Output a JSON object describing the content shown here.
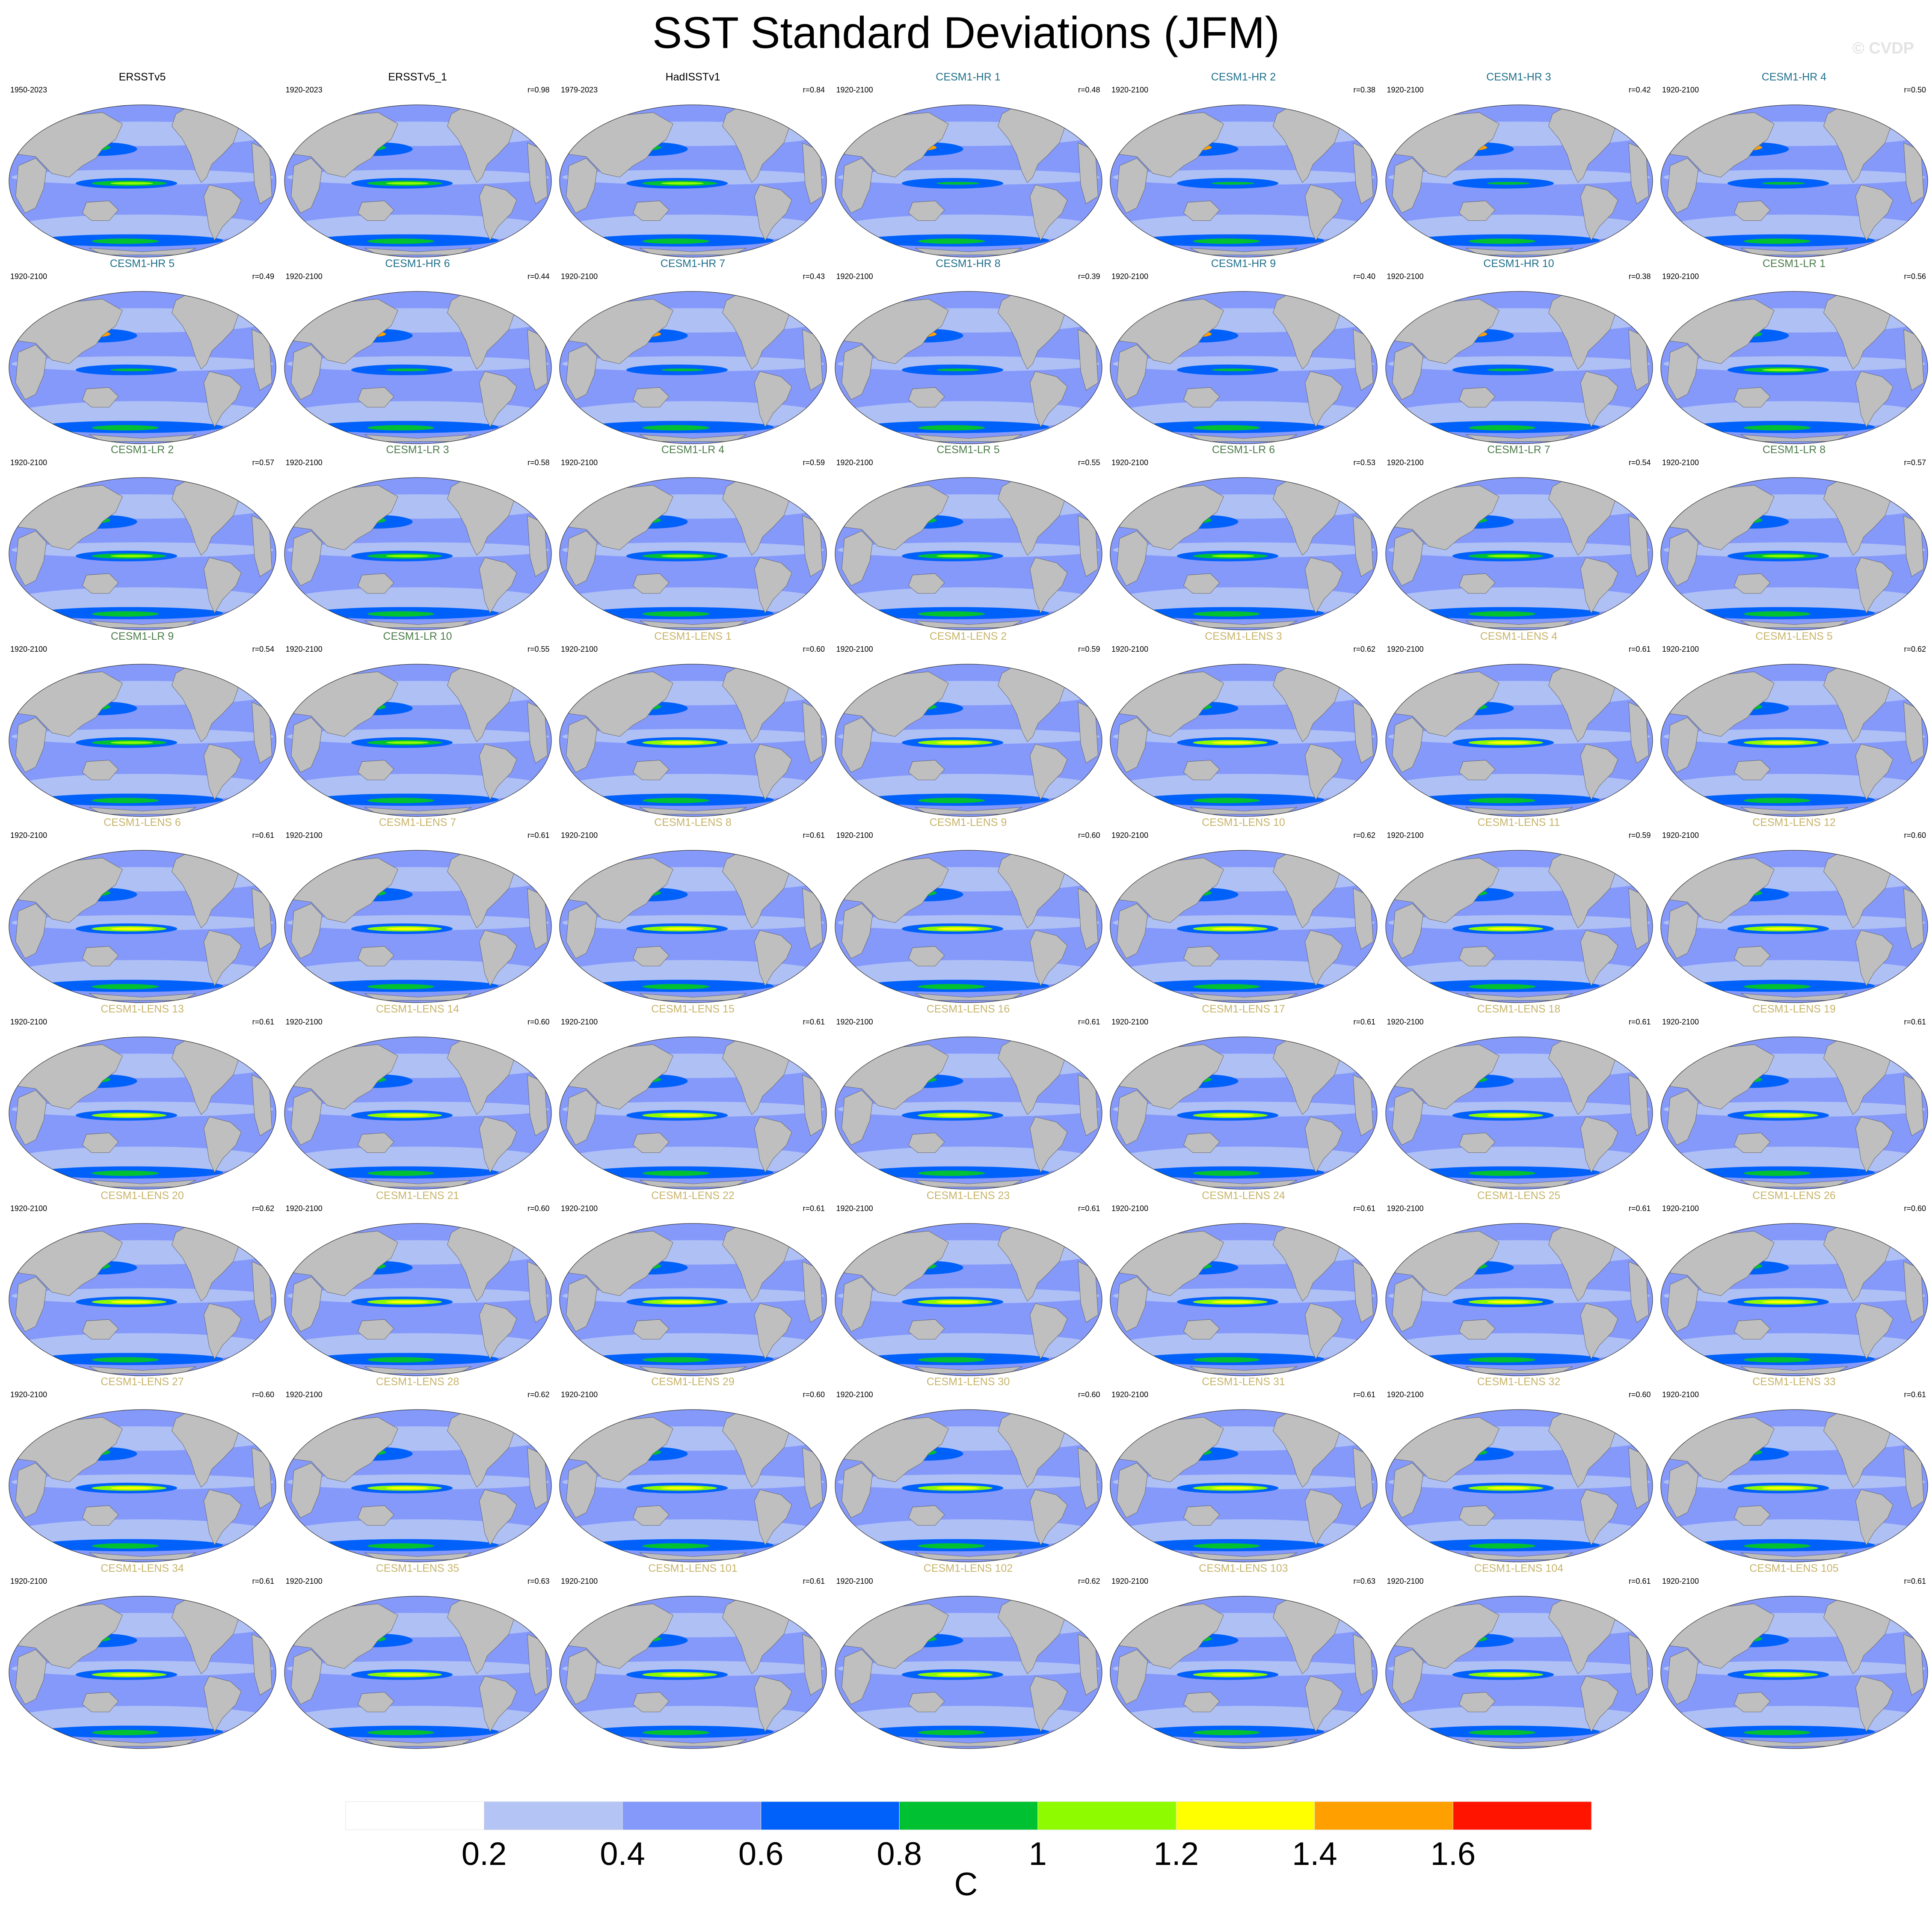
{
  "title": "SST Standard Deviations (JFM)",
  "copyright": "© CVDP",
  "colors": {
    "obs_title": "#000000",
    "hr_title": "#1f6f8b",
    "lr_title": "#4d7d4a",
    "lens_title": "#c8b46a",
    "land": "#bfbfbf"
  },
  "chart_data": {
    "type": "heatmap",
    "layout": "grid 7 columns x 9 rows",
    "colorbar": {
      "unit": "C",
      "levels": [
        0.2,
        0.4,
        0.6,
        0.8,
        1,
        1.2,
        1.4,
        1.6
      ],
      "tick_labels": [
        "0.2",
        "0.4",
        "0.6",
        "0.8",
        "1",
        "1.2",
        "1.4",
        "1.6"
      ],
      "colors": [
        "#ffffff",
        "#b4c4f4",
        "#8599fb",
        "#0061fa",
        "#00c132",
        "#8ffb00",
        "#ffff00",
        "#ffa000",
        "#ff1400"
      ]
    },
    "panels": [
      {
        "title": "ERSSTv5",
        "period": "1950-2023",
        "r": "",
        "group": "obs"
      },
      {
        "title": "ERSSTv5_1",
        "period": "1920-2023",
        "r": "r=0.98",
        "group": "obs"
      },
      {
        "title": "HadISSTv1",
        "period": "1979-2023",
        "r": "r=0.84",
        "group": "obs"
      },
      {
        "title": "CESM1-HR 1",
        "period": "1920-2100",
        "r": "r=0.48",
        "group": "hr"
      },
      {
        "title": "CESM1-HR 2",
        "period": "1920-2100",
        "r": "r=0.38",
        "group": "hr"
      },
      {
        "title": "CESM1-HR 3",
        "period": "1920-2100",
        "r": "r=0.42",
        "group": "hr"
      },
      {
        "title": "CESM1-HR 4",
        "period": "1920-2100",
        "r": "r=0.50",
        "group": "hr"
      },
      {
        "title": "CESM1-HR 5",
        "period": "1920-2100",
        "r": "r=0.49",
        "group": "hr"
      },
      {
        "title": "CESM1-HR 6",
        "period": "1920-2100",
        "r": "r=0.44",
        "group": "hr"
      },
      {
        "title": "CESM1-HR 7",
        "period": "1920-2100",
        "r": "r=0.43",
        "group": "hr"
      },
      {
        "title": "CESM1-HR 8",
        "period": "1920-2100",
        "r": "r=0.39",
        "group": "hr"
      },
      {
        "title": "CESM1-HR 9",
        "period": "1920-2100",
        "r": "r=0.40",
        "group": "hr"
      },
      {
        "title": "CESM1-HR 10",
        "period": "1920-2100",
        "r": "r=0.38",
        "group": "hr"
      },
      {
        "title": "CESM1-LR 1",
        "period": "1920-2100",
        "r": "r=0.56",
        "group": "lr"
      },
      {
        "title": "CESM1-LR 2",
        "period": "1920-2100",
        "r": "r=0.57",
        "group": "lr"
      },
      {
        "title": "CESM1-LR 3",
        "period": "1920-2100",
        "r": "r=0.58",
        "group": "lr"
      },
      {
        "title": "CESM1-LR 4",
        "period": "1920-2100",
        "r": "r=0.59",
        "group": "lr"
      },
      {
        "title": "CESM1-LR 5",
        "period": "1920-2100",
        "r": "r=0.55",
        "group": "lr"
      },
      {
        "title": "CESM1-LR 6",
        "period": "1920-2100",
        "r": "r=0.53",
        "group": "lr"
      },
      {
        "title": "CESM1-LR 7",
        "period": "1920-2100",
        "r": "r=0.54",
        "group": "lr"
      },
      {
        "title": "CESM1-LR 8",
        "period": "1920-2100",
        "r": "r=0.57",
        "group": "lr"
      },
      {
        "title": "CESM1-LR 9",
        "period": "1920-2100",
        "r": "r=0.54",
        "group": "lr"
      },
      {
        "title": "CESM1-LR 10",
        "period": "1920-2100",
        "r": "r=0.55",
        "group": "lr"
      },
      {
        "title": "CESM1-LENS 1",
        "period": "1920-2100",
        "r": "r=0.60",
        "group": "lens"
      },
      {
        "title": "CESM1-LENS 2",
        "period": "1920-2100",
        "r": "r=0.59",
        "group": "lens"
      },
      {
        "title": "CESM1-LENS 3",
        "period": "1920-2100",
        "r": "r=0.62",
        "group": "lens"
      },
      {
        "title": "CESM1-LENS 4",
        "period": "1920-2100",
        "r": "r=0.61",
        "group": "lens"
      },
      {
        "title": "CESM1-LENS 5",
        "period": "1920-2100",
        "r": "r=0.62",
        "group": "lens"
      },
      {
        "title": "CESM1-LENS 6",
        "period": "1920-2100",
        "r": "r=0.61",
        "group": "lens"
      },
      {
        "title": "CESM1-LENS 7",
        "period": "1920-2100",
        "r": "r=0.61",
        "group": "lens"
      },
      {
        "title": "CESM1-LENS 8",
        "period": "1920-2100",
        "r": "r=0.61",
        "group": "lens"
      },
      {
        "title": "CESM1-LENS 9",
        "period": "1920-2100",
        "r": "r=0.60",
        "group": "lens"
      },
      {
        "title": "CESM1-LENS 10",
        "period": "1920-2100",
        "r": "r=0.62",
        "group": "lens"
      },
      {
        "title": "CESM1-LENS 11",
        "period": "1920-2100",
        "r": "r=0.59",
        "group": "lens"
      },
      {
        "title": "CESM1-LENS 12",
        "period": "1920-2100",
        "r": "r=0.60",
        "group": "lens"
      },
      {
        "title": "CESM1-LENS 13",
        "period": "1920-2100",
        "r": "r=0.61",
        "group": "lens"
      },
      {
        "title": "CESM1-LENS 14",
        "period": "1920-2100",
        "r": "r=0.60",
        "group": "lens"
      },
      {
        "title": "CESM1-LENS 15",
        "period": "1920-2100",
        "r": "r=0.61",
        "group": "lens"
      },
      {
        "title": "CESM1-LENS 16",
        "period": "1920-2100",
        "r": "r=0.61",
        "group": "lens"
      },
      {
        "title": "CESM1-LENS 17",
        "period": "1920-2100",
        "r": "r=0.61",
        "group": "lens"
      },
      {
        "title": "CESM1-LENS 18",
        "period": "1920-2100",
        "r": "r=0.61",
        "group": "lens"
      },
      {
        "title": "CESM1-LENS 19",
        "period": "1920-2100",
        "r": "r=0.61",
        "group": "lens"
      },
      {
        "title": "CESM1-LENS 20",
        "period": "1920-2100",
        "r": "r=0.62",
        "group": "lens"
      },
      {
        "title": "CESM1-LENS 21",
        "period": "1920-2100",
        "r": "r=0.60",
        "group": "lens"
      },
      {
        "title": "CESM1-LENS 22",
        "period": "1920-2100",
        "r": "r=0.61",
        "group": "lens"
      },
      {
        "title": "CESM1-LENS 23",
        "period": "1920-2100",
        "r": "r=0.61",
        "group": "lens"
      },
      {
        "title": "CESM1-LENS 24",
        "period": "1920-2100",
        "r": "r=0.61",
        "group": "lens"
      },
      {
        "title": "CESM1-LENS 25",
        "period": "1920-2100",
        "r": "r=0.61",
        "group": "lens"
      },
      {
        "title": "CESM1-LENS 26",
        "period": "1920-2100",
        "r": "r=0.60",
        "group": "lens"
      },
      {
        "title": "CESM1-LENS 27",
        "period": "1920-2100",
        "r": "r=0.60",
        "group": "lens"
      },
      {
        "title": "CESM1-LENS 28",
        "period": "1920-2100",
        "r": "r=0.62",
        "group": "lens"
      },
      {
        "title": "CESM1-LENS 29",
        "period": "1920-2100",
        "r": "r=0.60",
        "group": "lens"
      },
      {
        "title": "CESM1-LENS 30",
        "period": "1920-2100",
        "r": "r=0.60",
        "group": "lens"
      },
      {
        "title": "CESM1-LENS 31",
        "period": "1920-2100",
        "r": "r=0.61",
        "group": "lens"
      },
      {
        "title": "CESM1-LENS 32",
        "period": "1920-2100",
        "r": "r=0.60",
        "group": "lens"
      },
      {
        "title": "CESM1-LENS 33",
        "period": "1920-2100",
        "r": "r=0.61",
        "group": "lens"
      },
      {
        "title": "CESM1-LENS 34",
        "period": "1920-2100",
        "r": "r=0.61",
        "group": "lens"
      },
      {
        "title": "CESM1-LENS 35",
        "period": "1920-2100",
        "r": "r=0.63",
        "group": "lens"
      },
      {
        "title": "CESM1-LENS 101",
        "period": "1920-2100",
        "r": "r=0.61",
        "group": "lens"
      },
      {
        "title": "CESM1-LENS 102",
        "period": "1920-2100",
        "r": "r=0.62",
        "group": "lens"
      },
      {
        "title": "CESM1-LENS 103",
        "period": "1920-2100",
        "r": "r=0.63",
        "group": "lens"
      },
      {
        "title": "CESM1-LENS 104",
        "period": "1920-2100",
        "r": "r=0.61",
        "group": "lens"
      },
      {
        "title": "CESM1-LENS 105",
        "period": "1920-2100",
        "r": "r=0.61",
        "group": "lens"
      }
    ]
  }
}
